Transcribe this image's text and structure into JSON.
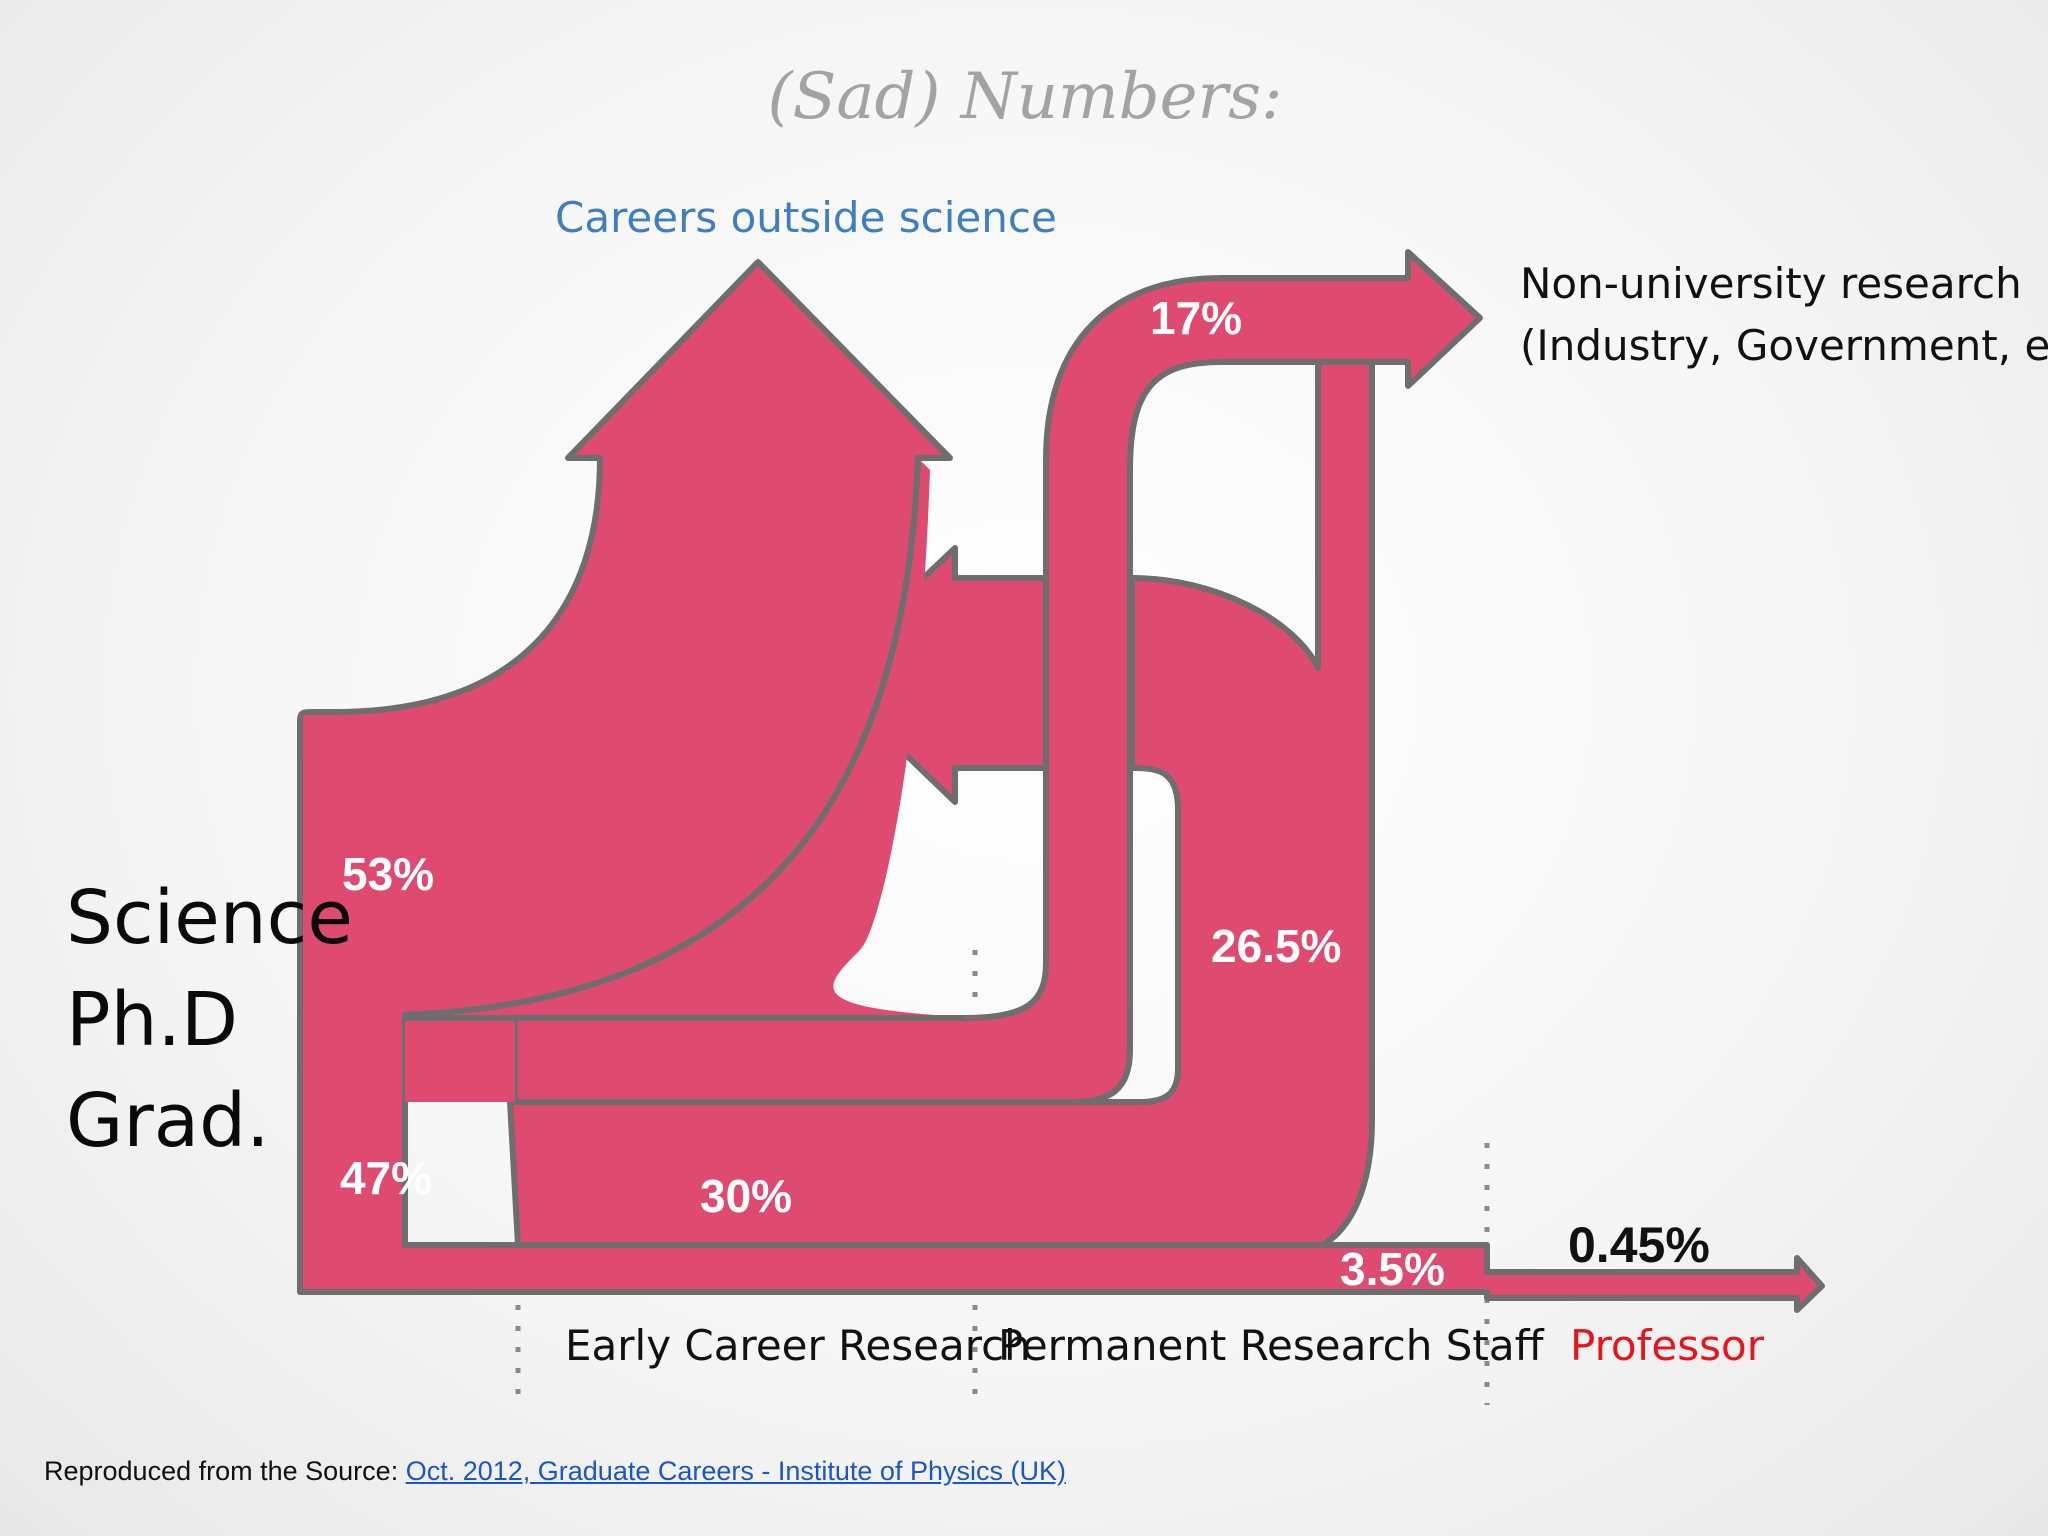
{
  "title": "(Sad) Numbers:",
  "origin": {
    "line1": "Science",
    "line2": "Ph.D",
    "line3": "Grad."
  },
  "destinations": {
    "outside_science": "Careers outside science",
    "non_university_line1": "Non-university research",
    "non_university_line2": "(Industry, Government, etc.)"
  },
  "stages": {
    "early_career": "Early Career Research",
    "permanent_staff": "Permanent Research Staff",
    "professor": "Professor"
  },
  "flows": {
    "outside_science": "53%",
    "continue_research": "47%",
    "early_to_permanent": "30%",
    "non_university": "17%",
    "permanent_exit": "26.5%",
    "permanent_continue": "3.5%",
    "professor": "0.45%"
  },
  "colors": {
    "flow_fill": "#df4a70",
    "flow_stroke": "#6e6e6e",
    "accent_blue": "#3f7fc0",
    "accent_red": "#e8141b",
    "title_gray": "#a3a3a3"
  },
  "source": {
    "prefix": "Reproduced from the Source: ",
    "link_text": "Oct. 2012, Graduate Careers - Institute of Physics (UK)"
  }
}
